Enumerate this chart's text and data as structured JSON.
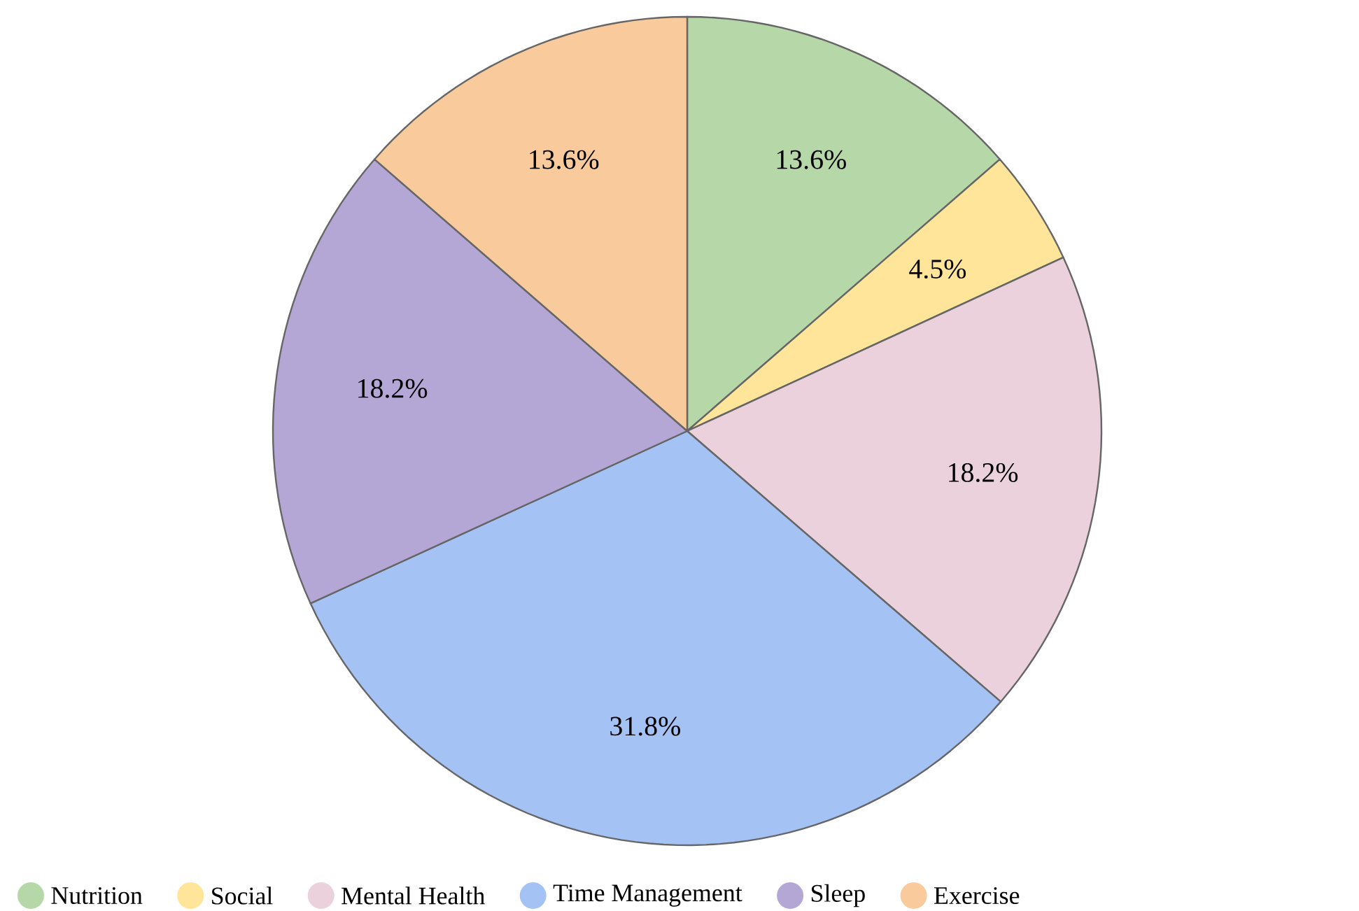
{
  "chart_data": {
    "type": "pie",
    "categories": [
      "Nutrition",
      "Social",
      "Mental Health",
      "Time Management",
      "Sleep",
      "Exercise"
    ],
    "values": [
      13.6,
      4.5,
      18.2,
      31.8,
      18.2,
      13.6
    ],
    "value_labels": [
      "13.6%",
      "4.5%",
      "18.2%",
      "31.8%",
      "18.2%",
      "13.6%"
    ],
    "colors": [
      "#b6d7a8",
      "#ffe599",
      "#ead1dc",
      "#a4c2f4",
      "#b4a7d6",
      "#f9cb9c"
    ],
    "legend": "bottom"
  }
}
